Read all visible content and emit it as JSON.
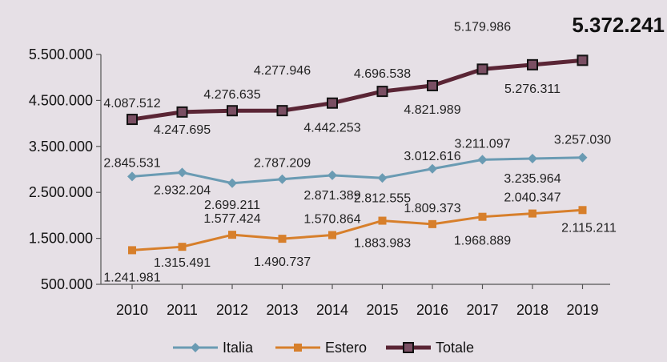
{
  "chart_data": {
    "type": "line",
    "title": "",
    "xlabel": "",
    "ylabel": "",
    "callout": "5.372.241",
    "x": [
      "2010",
      "2011",
      "2012",
      "2013",
      "2014",
      "2015",
      "2016",
      "2017",
      "2018",
      "2019"
    ],
    "yticks": [
      "500.000",
      "1.500.000",
      "2.500.000",
      "3.500.000",
      "4.500.000",
      "5.500.000"
    ],
    "ytick_values": [
      500000,
      1500000,
      2500000,
      3500000,
      4500000,
      5500000
    ],
    "ylim": [
      500000,
      5500000
    ],
    "grid": false,
    "legend_position": "bottom",
    "series": [
      {
        "name": "Italia",
        "color": "#6a9bb3",
        "marker": "diamond",
        "values": [
          2845531,
          2932204,
          2699211,
          2787209,
          2871389,
          2812555,
          3012616,
          3211097,
          3235964,
          3257030
        ],
        "labels": [
          "2.845.531",
          "2.932.204",
          "2.699.211",
          "2.787.209",
          "2.871.389",
          "2.812.555",
          "3.012.616",
          "3.211.097",
          "3.235.964",
          "3.257.030"
        ]
      },
      {
        "name": "Estero",
        "color": "#d77f2b",
        "marker": "square",
        "values": [
          1241981,
          1315491,
          1577424,
          1490737,
          1570864,
          1883983,
          1809373,
          1968889,
          2040347,
          2115211
        ],
        "labels": [
          "1.241.981",
          "1.315.491",
          "1.577.424",
          "1.490.737",
          "1.570.864",
          "1.883.983",
          "1.809.373",
          "1.968.889",
          "2.040.347",
          "2.115.211"
        ]
      },
      {
        "name": "Totale",
        "color": "#5a2535",
        "marker": "square-outline",
        "values": [
          4087512,
          4247695,
          4276635,
          4277946,
          4442253,
          4696538,
          4821989,
          5179986,
          5276311,
          5372241
        ],
        "labels": [
          "4.087.512",
          "4.247.695",
          "4.276.635",
          "4.277.946",
          "4.442.253",
          "4.696.538",
          "4.821.989",
          "5.179.986",
          "5.276.311",
          ""
        ]
      }
    ]
  }
}
